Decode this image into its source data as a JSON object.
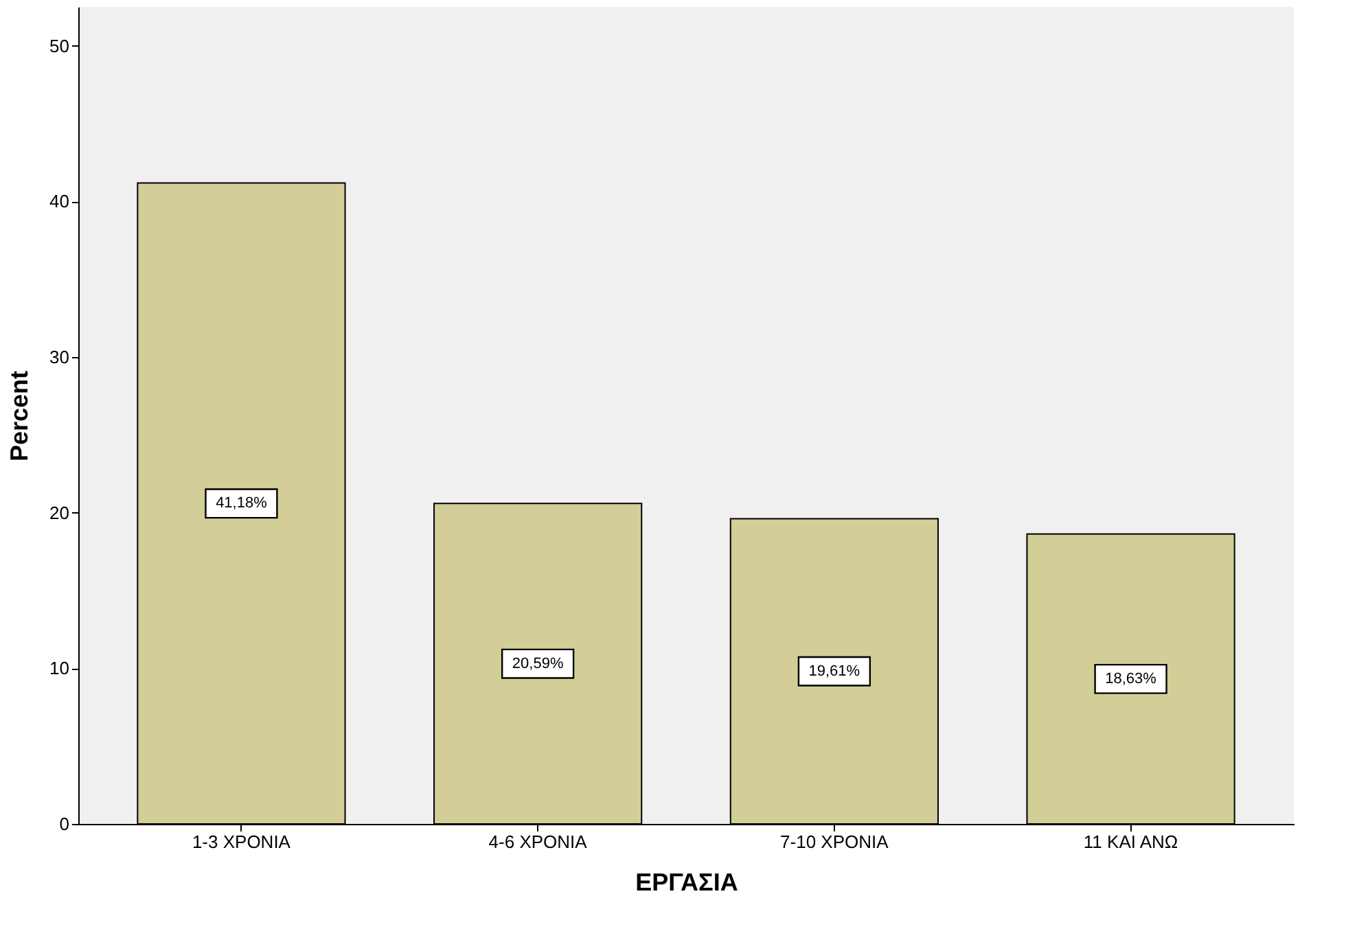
{
  "chart_data": {
    "type": "bar",
    "xlabel": "ΕΡΓΑΣΙΑ",
    "ylabel": "Percent",
    "categories": [
      "1-3 ΧΡΟΝΙΑ",
      "4-6 ΧΡΟΝΙΑ",
      "7-10 ΧΡΟΝΙΑ",
      "11 ΚΑΙ ΑΝΩ"
    ],
    "values": [
      41.18,
      20.59,
      19.61,
      18.63
    ],
    "value_labels": [
      "41,18%",
      "20,59%",
      "19,61%",
      "18,63%"
    ],
    "color": "#d3ce97",
    "ylim": [
      0,
      52.5
    ],
    "yticks": [
      0,
      10,
      20,
      30,
      40,
      50
    ],
    "grid": false
  }
}
